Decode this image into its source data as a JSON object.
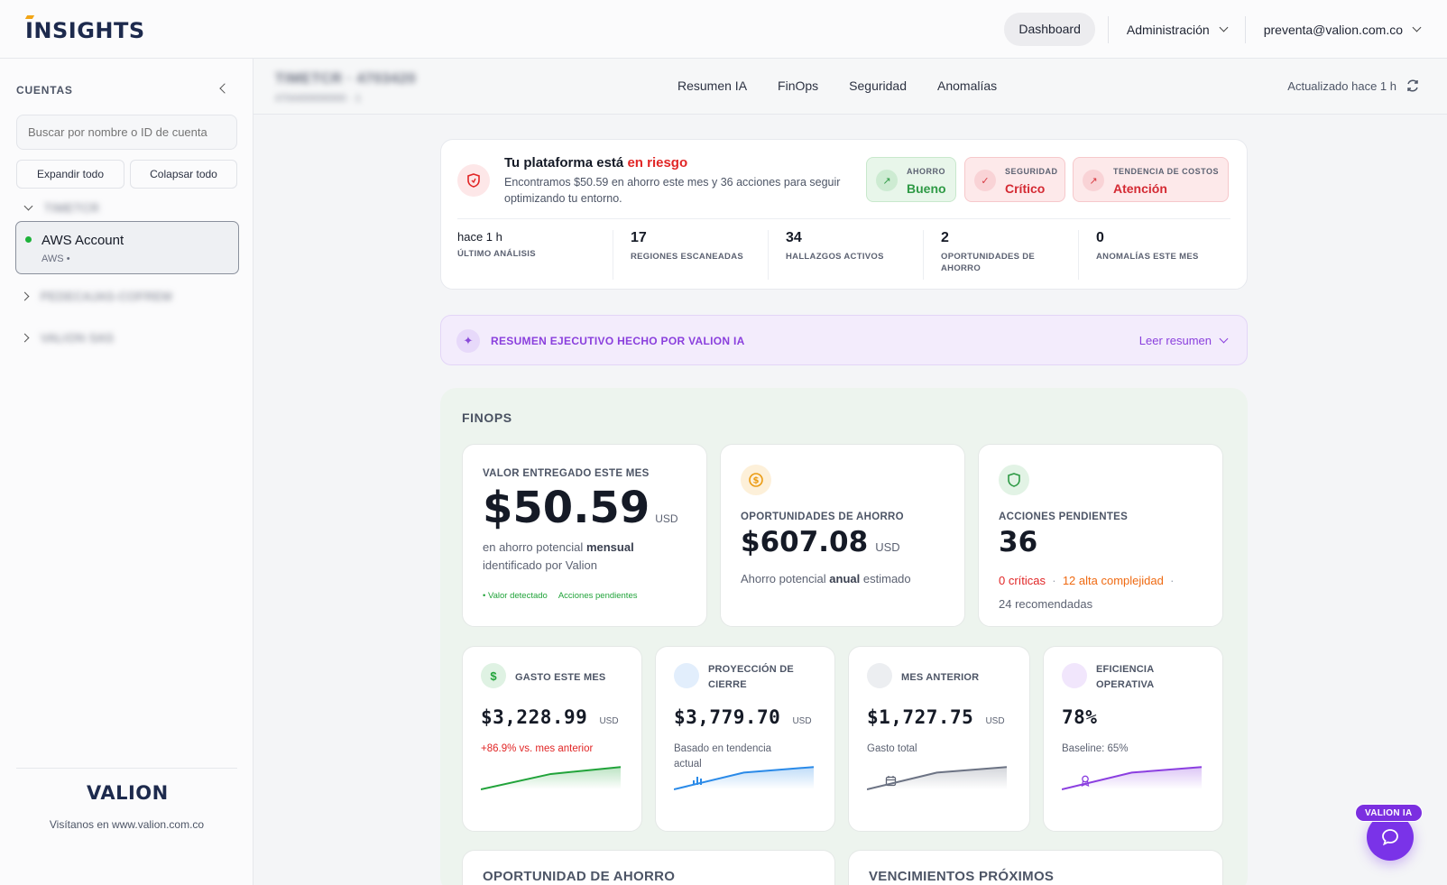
{
  "header": {
    "logo": "INSIGHTS",
    "dashboard_label": "Dashboard",
    "admin_label": "Administración",
    "user_email": "preventa@valion.com.co"
  },
  "sidebar": {
    "title": "CUENTAS",
    "search_placeholder": "Buscar por nombre o ID de cuenta",
    "expand_all": "Expandir todo",
    "collapse_all": "Colapsar todo",
    "groups": [
      {
        "label": "TIMETCR"
      },
      {
        "label": "PEDECAJAS-COFREM"
      },
      {
        "label": "VALION SAS"
      }
    ],
    "selected_account": {
      "name": "AWS Account",
      "provider": "AWS •"
    },
    "footer_brand": "VALION",
    "footer_text": "Visítanos en www.valion.com.co"
  },
  "subheader": {
    "blurred_title": "TIMETCR · 4703420",
    "blurred_sub": "4704400000000 · 1",
    "tabs": [
      "Resumen IA",
      "FinOps",
      "Seguridad",
      "Anomalías"
    ],
    "updated": "Actualizado hace 1 h"
  },
  "risk": {
    "title_prefix": "Tu plataforma está",
    "title_status": "en riesgo",
    "description": "Encontramos $50.59 en ahorro este mes y 36 acciones para seguir optimizando tu entorno.",
    "statuses": [
      {
        "label": "AHORRO",
        "value": "Bueno",
        "icon": "trend-up-icon"
      },
      {
        "label": "SEGURIDAD",
        "value": "Crítico",
        "icon": "check-icon"
      },
      {
        "label": "TENDENCIA DE COSTOS",
        "value": "Atención",
        "icon": "trend-up-icon"
      }
    ],
    "metrics": [
      {
        "value": "hace 1 h",
        "label": "ÚLTIMO ANÁLISIS"
      },
      {
        "value": "17",
        "label": "REGIONES ESCANEADAS"
      },
      {
        "value": "34",
        "label": "HALLAZGOS ACTIVOS"
      },
      {
        "value": "2",
        "label": "OPORTUNIDADES DE AHORRO"
      },
      {
        "value": "0",
        "label": "ANOMALÍAS ESTE MES"
      }
    ]
  },
  "executive": {
    "title": "RESUMEN EJECUTIVO HECHO POR VALION IA",
    "read_label": "Leer resumen"
  },
  "finops": {
    "title": "FINOPS",
    "delivered": {
      "label": "VALOR ENTREGADO ESTE MES",
      "value": "$50.59",
      "unit": "USD",
      "caption_a": "en ahorro potencial",
      "caption_b": "mensual",
      "caption_c": "identificado por Valion",
      "tag_1": "• Valor detectado",
      "tag_2": "Acciones pendientes"
    },
    "savings": {
      "label": "OPORTUNIDADES DE AHORRO",
      "value": "$607.08",
      "unit": "USD",
      "caption_a": "Ahorro potencial",
      "caption_b": "anual",
      "caption_c": "estimado"
    },
    "pending": {
      "label": "ACCIONES PENDIENTES",
      "value": "36",
      "critical": "0 críticas",
      "high": "12 alta complejidad",
      "recommended": "24 recomendadas"
    },
    "small_cards": [
      {
        "label": "GASTO ESTE MES",
        "value": "$3,228.99",
        "unit": "USD",
        "note": "+86.9% vs. mes anterior",
        "color": "#21a33a",
        "spark": [
          0.0,
          0.55,
          0.8
        ]
      },
      {
        "label": "PROYECCIÓN DE CIERRE",
        "value": "$3,779.70",
        "unit": "USD",
        "note": "Basado en tendencia actual",
        "color": "#2a8ae8",
        "spark": [
          0.0,
          0.6,
          0.8
        ]
      },
      {
        "label": "MES ANTERIOR",
        "value": "$1,727.75",
        "unit": "USD",
        "note": "Gasto total",
        "color": "#6c7384",
        "spark": [
          0.0,
          0.6,
          0.8
        ]
      },
      {
        "label": "EFICIENCIA OPERATIVA",
        "value": "78%",
        "unit": "",
        "note": "Baseline: 65%",
        "color": "#8b3fe0",
        "spark": [
          0.0,
          0.6,
          0.8
        ]
      }
    ],
    "bottom_left": "OPORTUNIDAD DE AHORRO",
    "bottom_right": "VENCIMIENTOS PRÓXIMOS"
  },
  "fab": {
    "label": "VALION IA"
  },
  "colors": {
    "brand_navy": "#1d2a4d",
    "accent_purple": "#8a3fdd",
    "danger": "#e12626",
    "success": "#2e9a45"
  }
}
